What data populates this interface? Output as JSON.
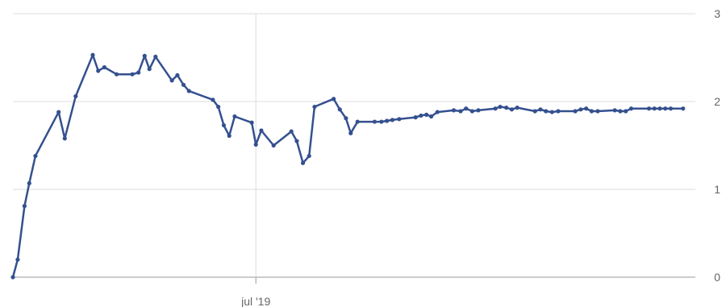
{
  "chart_data": {
    "type": "line",
    "title": "",
    "xlabel": "",
    "ylabel": "",
    "x_ticks": [
      {
        "label": "jul '19",
        "x": 0.356
      }
    ],
    "y_ticks": [
      {
        "label": "0",
        "value": 0
      },
      {
        "label": "1",
        "value": 1
      },
      {
        "label": "2",
        "value": 2
      },
      {
        "label": "3",
        "value": 3
      }
    ],
    "ylim": [
      0,
      3
    ],
    "xlim": [
      0,
      1
    ],
    "grid": true,
    "legend": "none",
    "colors": {
      "line": "#34508f",
      "grid": "#dddddd",
      "axis": "#9a9a9a",
      "text": "#666666"
    },
    "series": [
      {
        "values": [
          [
            0.0,
            0.0
          ],
          [
            0.007,
            0.2
          ],
          [
            0.017,
            0.81
          ],
          [
            0.024,
            1.07
          ],
          [
            0.033,
            1.38
          ],
          [
            0.067,
            1.88
          ],
          [
            0.076,
            1.58
          ],
          [
            0.092,
            2.06
          ],
          [
            0.117,
            2.53
          ],
          [
            0.125,
            2.35
          ],
          [
            0.134,
            2.39
          ],
          [
            0.152,
            2.31
          ],
          [
            0.175,
            2.31
          ],
          [
            0.184,
            2.33
          ],
          [
            0.193,
            2.52
          ],
          [
            0.2,
            2.37
          ],
          [
            0.209,
            2.51
          ],
          [
            0.233,
            2.24
          ],
          [
            0.241,
            2.3
          ],
          [
            0.25,
            2.19
          ],
          [
            0.258,
            2.12
          ],
          [
            0.293,
            2.02
          ],
          [
            0.301,
            1.94
          ],
          [
            0.309,
            1.73
          ],
          [
            0.317,
            1.61
          ],
          [
            0.325,
            1.83
          ],
          [
            0.35,
            1.76
          ],
          [
            0.356,
            1.51
          ],
          [
            0.364,
            1.67
          ],
          [
            0.382,
            1.5
          ],
          [
            0.408,
            1.66
          ],
          [
            0.416,
            1.55
          ],
          [
            0.425,
            1.3
          ],
          [
            0.434,
            1.38
          ],
          [
            0.442,
            1.94
          ],
          [
            0.47,
            2.03
          ],
          [
            0.479,
            1.91
          ],
          [
            0.488,
            1.81
          ],
          [
            0.495,
            1.64
          ],
          [
            0.505,
            1.77
          ],
          [
            0.53,
            1.77
          ],
          [
            0.54,
            1.77
          ],
          [
            0.548,
            1.78
          ],
          [
            0.556,
            1.79
          ],
          [
            0.566,
            1.8
          ],
          [
            0.59,
            1.82
          ],
          [
            0.598,
            1.84
          ],
          [
            0.606,
            1.85
          ],
          [
            0.613,
            1.83
          ],
          [
            0.622,
            1.88
          ],
          [
            0.646,
            1.9
          ],
          [
            0.656,
            1.89
          ],
          [
            0.664,
            1.92
          ],
          [
            0.673,
            1.89
          ],
          [
            0.682,
            1.9
          ],
          [
            0.707,
            1.92
          ],
          [
            0.714,
            1.94
          ],
          [
            0.723,
            1.93
          ],
          [
            0.731,
            1.91
          ],
          [
            0.739,
            1.93
          ],
          [
            0.765,
            1.89
          ],
          [
            0.773,
            1.91
          ],
          [
            0.781,
            1.89
          ],
          [
            0.79,
            1.88
          ],
          [
            0.799,
            1.89
          ],
          [
            0.824,
            1.89
          ],
          [
            0.832,
            1.91
          ],
          [
            0.84,
            1.92
          ],
          [
            0.848,
            1.89
          ],
          [
            0.857,
            1.89
          ],
          [
            0.882,
            1.9
          ],
          [
            0.89,
            1.89
          ],
          [
            0.898,
            1.89
          ],
          [
            0.906,
            1.92
          ],
          [
            0.932,
            1.92
          ],
          [
            0.94,
            1.92
          ],
          [
            0.948,
            1.92
          ],
          [
            0.956,
            1.92
          ],
          [
            0.964,
            1.92
          ],
          [
            0.982,
            1.92
          ]
        ]
      }
    ]
  }
}
